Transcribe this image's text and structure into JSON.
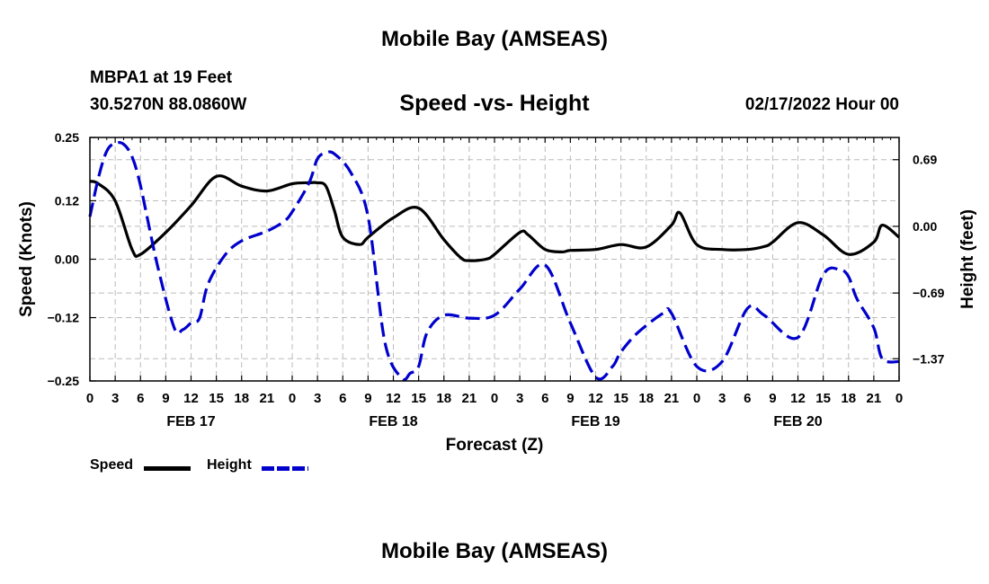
{
  "page": {
    "title": "Mobile Bay (AMSEAS)",
    "station": "MBPA1 at 19 Feet",
    "coords": "30.5270N  88.0860W",
    "chart_title": "Speed -vs- Height",
    "date": "02/17/2022 Hour 00",
    "footer_title": "Mobile Bay (AMSEAS)"
  },
  "legend": {
    "speed_label": "Speed",
    "height_label": "Height"
  },
  "colors": {
    "speed": "#000000",
    "height": "#0000cc",
    "grid": "#bbbbbb",
    "axis": "#000000"
  },
  "chart_data": {
    "type": "line",
    "title": "Speed -vs- Height",
    "xlabel": "Forecast (Z)",
    "ylabel": "Speed (Knots)",
    "y2label": "Height (feet)",
    "x_unit": "forecast hour",
    "xlim": [
      0,
      96
    ],
    "ylim": [
      -0.25,
      0.25
    ],
    "y2lim": [
      -1.6,
      0.92
    ],
    "yticks": [
      0.25,
      0.12,
      0.0,
      -0.12,
      -0.25
    ],
    "ytick_labels": [
      "0.25",
      "0.12",
      "0.00",
      "−0.12",
      "−0.25"
    ],
    "y2ticks": [
      0.69,
      0.0,
      -0.69,
      -1.37
    ],
    "y2tick_labels": [
      "0.69",
      "0.00",
      "−0.69",
      "−1.37"
    ],
    "xtick_hours": [
      0,
      3,
      6,
      9,
      12,
      15,
      18,
      21,
      24,
      27,
      30,
      33,
      36,
      39,
      42,
      45,
      48,
      51,
      54,
      57,
      60,
      63,
      66,
      69,
      72,
      75,
      78,
      81,
      84,
      87,
      90,
      93,
      96
    ],
    "xtick_labels": [
      "0",
      "3",
      "6",
      "9",
      "12",
      "15",
      "18",
      "21",
      "0",
      "3",
      "6",
      "9",
      "12",
      "15",
      "18",
      "21",
      "0",
      "3",
      "6",
      "9",
      "12",
      "15",
      "18",
      "21",
      "0",
      "3",
      "6",
      "9",
      "12",
      "15",
      "18",
      "21",
      "0"
    ],
    "day_labels": [
      {
        "label": "FEB 17",
        "hour": 12
      },
      {
        "label": "FEB 18",
        "hour": 36
      },
      {
        "label": "FEB 19",
        "hour": 60
      },
      {
        "label": "FEB 20",
        "hour": 84
      }
    ],
    "grid": true,
    "series": [
      {
        "name": "Speed",
        "axis": "left",
        "style": "solid",
        "x": [
          0,
          1,
          3,
          5,
          6,
          9,
          12,
          15,
          18,
          21,
          24,
          26,
          27,
          28,
          29,
          30,
          32,
          33,
          36,
          39,
          42,
          44,
          45,
          47,
          48,
          51,
          52,
          54,
          56,
          57,
          60,
          63,
          66,
          69,
          70,
          72,
          75,
          78,
          80,
          81,
          84,
          87,
          90,
          93,
          94,
          96
        ],
        "y": [
          0.16,
          0.155,
          0.12,
          0.02,
          0.01,
          0.055,
          0.11,
          0.17,
          0.15,
          0.14,
          0.155,
          0.157,
          0.157,
          0.15,
          0.1,
          0.045,
          0.03,
          0.045,
          0.085,
          0.105,
          0.04,
          0.003,
          -0.003,
          0.0,
          0.01,
          0.055,
          0.05,
          0.02,
          0.015,
          0.018,
          0.02,
          0.03,
          0.025,
          0.07,
          0.095,
          0.03,
          0.02,
          0.02,
          0.026,
          0.035,
          0.075,
          0.05,
          0.01,
          0.035,
          0.07,
          0.045
        ]
      },
      {
        "name": "Height",
        "axis": "right",
        "style": "dashed",
        "x": [
          0,
          1,
          2,
          3,
          4,
          5,
          6,
          8,
          10,
          11,
          12,
          13,
          14,
          16,
          18,
          21,
          23,
          24,
          26,
          27,
          28,
          29,
          31,
          33,
          35,
          37,
          38,
          39,
          40,
          42,
          45,
          48,
          51,
          54,
          57,
          60,
          62,
          63,
          65,
          68,
          69,
          72,
          75,
          78,
          80,
          84,
          87,
          89,
          90,
          91,
          93,
          94,
          96
        ],
        "y": [
          0.1,
          0.5,
          0.78,
          0.86,
          0.85,
          0.72,
          0.42,
          -0.4,
          -1.05,
          -1.07,
          -1.0,
          -0.95,
          -0.6,
          -0.3,
          -0.15,
          -0.05,
          0.05,
          0.15,
          0.45,
          0.7,
          0.76,
          0.75,
          0.55,
          0.1,
          -1.2,
          -1.57,
          -1.52,
          -1.45,
          -1.1,
          -0.92,
          -0.95,
          -0.92,
          -0.65,
          -0.4,
          -1.0,
          -1.56,
          -1.45,
          -1.3,
          -1.1,
          -0.9,
          -0.9,
          -1.45,
          -1.4,
          -0.85,
          -0.92,
          -1.15,
          -0.5,
          -0.45,
          -0.52,
          -0.75,
          -1.05,
          -1.37,
          -1.4
        ]
      }
    ]
  }
}
